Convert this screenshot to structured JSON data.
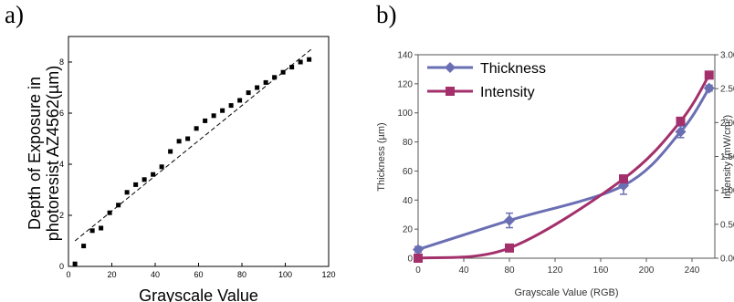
{
  "panels": {
    "a": "a)",
    "b": "b)"
  },
  "chart_data": [
    {
      "type": "scatter",
      "title": "",
      "xlabel": "Grayscale Value",
      "ylabel_line1": "Depth of Exposure in",
      "ylabel_line2": "photoresist AZ4562(µm)",
      "xlim": [
        0,
        120
      ],
      "ylim": [
        0,
        9
      ],
      "x_ticks": [
        0,
        20,
        40,
        60,
        80,
        100,
        120
      ],
      "y_ticks": [
        0,
        2,
        4,
        6,
        8
      ],
      "grid": false,
      "series": [
        {
          "marker": "square",
          "x": [
            3,
            7,
            11,
            15,
            19,
            23,
            27,
            31,
            35,
            39,
            43,
            47,
            51,
            55,
            59,
            63,
            67,
            71,
            75,
            79,
            83,
            87,
            91,
            95,
            99,
            103,
            107,
            111
          ],
          "y": [
            0.1,
            0.8,
            1.4,
            1.5,
            2.1,
            2.4,
            2.9,
            3.2,
            3.4,
            3.6,
            3.9,
            4.5,
            4.9,
            5.0,
            5.4,
            5.7,
            5.9,
            6.1,
            6.3,
            6.5,
            6.8,
            7.0,
            7.2,
            7.4,
            7.6,
            7.8,
            8.0,
            8.1
          ]
        }
      ],
      "trend_line": {
        "style": "dashed",
        "x": [
          3,
          112
        ],
        "y": [
          1.0,
          8.5
        ]
      }
    },
    {
      "type": "line",
      "title": "",
      "xlabel": "Grayscale Value (RGB)",
      "ylabel": "Thickness (µm)",
      "y2label": "Intensity (mW/cm²)",
      "xlim": [
        0,
        260
      ],
      "ylim": [
        0,
        140
      ],
      "y2lim": [
        0,
        3
      ],
      "x_ticks": [
        "0",
        "40",
        "80",
        "120",
        "160",
        "200",
        "240"
      ],
      "y_ticks": [
        "0",
        "20",
        "40",
        "60",
        "80",
        "100",
        "120",
        "140"
      ],
      "y2_ticks": [
        "0.00",
        "0.50",
        "1.00",
        "1.50",
        "2.00",
        "2.50",
        "3.00"
      ],
      "legend_position": "top-left",
      "grid": false,
      "series": [
        {
          "name": "Thickness",
          "color": "#6a6fb3",
          "marker": "diamond",
          "axis": "left",
          "x": [
            0,
            80,
            180,
            230,
            255
          ],
          "y": [
            6,
            26,
            50,
            87,
            117
          ],
          "error": [
            2,
            5,
            6,
            4,
            2
          ]
        },
        {
          "name": "Intensity",
          "color": "#a3306b",
          "marker": "square",
          "axis": "right",
          "x": [
            0,
            80,
            180,
            230,
            255
          ],
          "y": [
            0.0,
            0.15,
            1.17,
            2.02,
            2.7
          ]
        }
      ]
    }
  ]
}
